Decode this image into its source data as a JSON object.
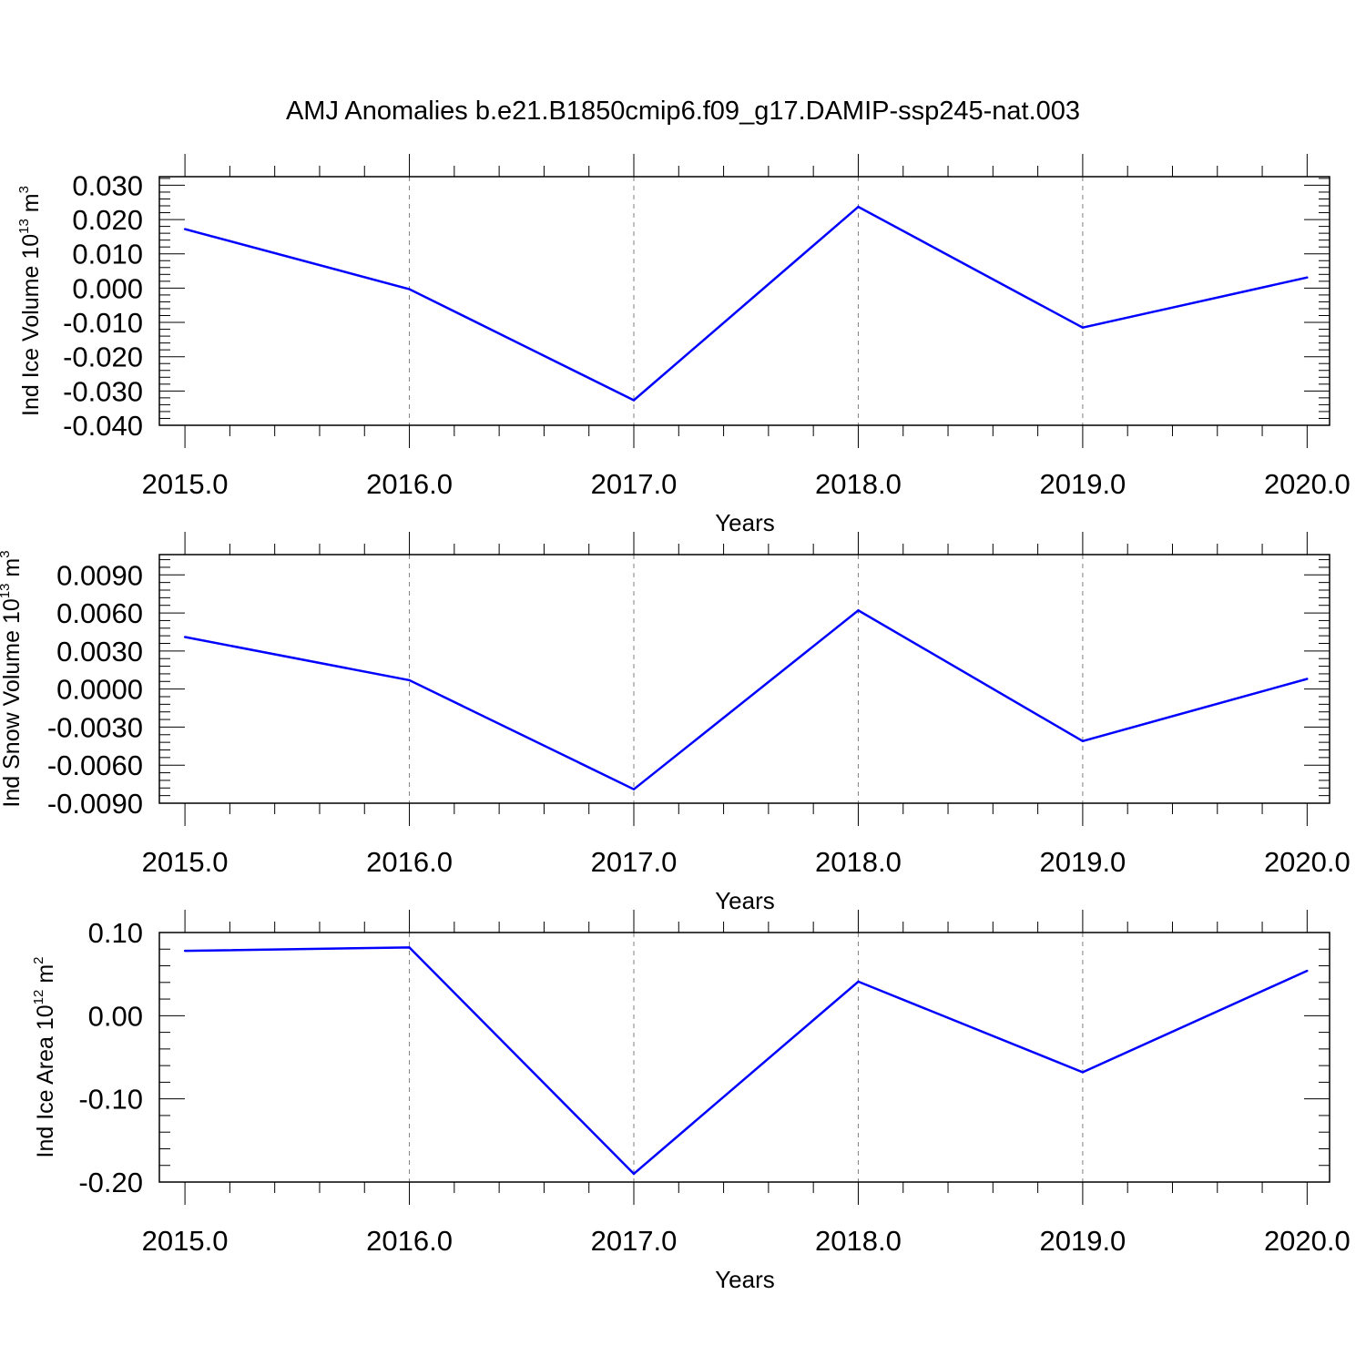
{
  "title": "AMJ Anomalies b.e21.B1850cmip6.f09_g17.DAMIP-ssp245-nat.003",
  "line_color": "#0000ff",
  "grid_color": "#808080",
  "chart_data": [
    {
      "type": "line",
      "ylabel": {
        "main": "Ind Ice Volume 10",
        "sup1": "13",
        "unit": " m",
        "sup2": "3"
      },
      "xlabel": "Years",
      "x": [
        2015,
        2016,
        2017,
        2018,
        2019,
        2020
      ],
      "xticks": [
        "2015.0",
        "2016.0",
        "2017.0",
        "2018.0",
        "2019.0",
        "2020.0"
      ],
      "xlim": [
        2014.886,
        2020.1
      ],
      "ylim": [
        -0.04,
        0.0325
      ],
      "yticks": [
        0.03,
        0.02,
        0.01,
        0.0,
        -0.01,
        -0.02,
        -0.03,
        -0.04
      ],
      "yticklabels": [
        "0.030",
        "0.020",
        "0.010",
        "0.000",
        "-0.010",
        "-0.020",
        "-0.030",
        "-0.040"
      ],
      "grid": "vertical dashed",
      "series": [
        {
          "values": [
            0.0172,
            -0.0003,
            -0.0327,
            0.0237,
            -0.0115,
            0.0031
          ]
        }
      ]
    },
    {
      "type": "line",
      "ylabel": {
        "main": "Ind Snow Volume 10",
        "sup1": "13",
        "unit": " m",
        "sup2": "3"
      },
      "xlabel": "Years",
      "x": [
        2015,
        2016,
        2017,
        2018,
        2019,
        2020
      ],
      "xticks": [
        "2015.0",
        "2016.0",
        "2017.0",
        "2018.0",
        "2019.0",
        "2020.0"
      ],
      "xlim": [
        2014.886,
        2020.1
      ],
      "ylim": [
        -0.009,
        0.0106
      ],
      "yticks": [
        0.009,
        0.006,
        0.003,
        0.0,
        -0.003,
        -0.006,
        -0.009
      ],
      "yticklabels": [
        "0.0090",
        "0.0060",
        "0.0030",
        "0.0000",
        "-0.0030",
        "-0.0060",
        "-0.0090"
      ],
      "grid": "vertical dashed",
      "series": [
        {
          "values": [
            0.0041,
            0.0007,
            -0.0079,
            0.0062,
            -0.0041,
            0.0008
          ]
        }
      ]
    },
    {
      "type": "line",
      "ylabel": {
        "main": "Ind Ice Area 10",
        "sup1": "12",
        "unit": " m",
        "sup2": "2"
      },
      "xlabel": "Years",
      "x": [
        2015,
        2016,
        2017,
        2018,
        2019,
        2020
      ],
      "xticks": [
        "2015.0",
        "2016.0",
        "2017.0",
        "2018.0",
        "2019.0",
        "2020.0"
      ],
      "xlim": [
        2014.886,
        2020.1
      ],
      "ylim": [
        -0.2,
        0.1
      ],
      "yticks": [
        0.1,
        0.0,
        -0.1,
        -0.2
      ],
      "yticklabels": [
        "0.10",
        "0.00",
        "-0.10",
        "-0.20"
      ],
      "grid": "vertical dashed",
      "series": [
        {
          "values": [
            0.078,
            0.082,
            -0.19,
            0.041,
            -0.068,
            0.054
          ]
        }
      ]
    }
  ]
}
